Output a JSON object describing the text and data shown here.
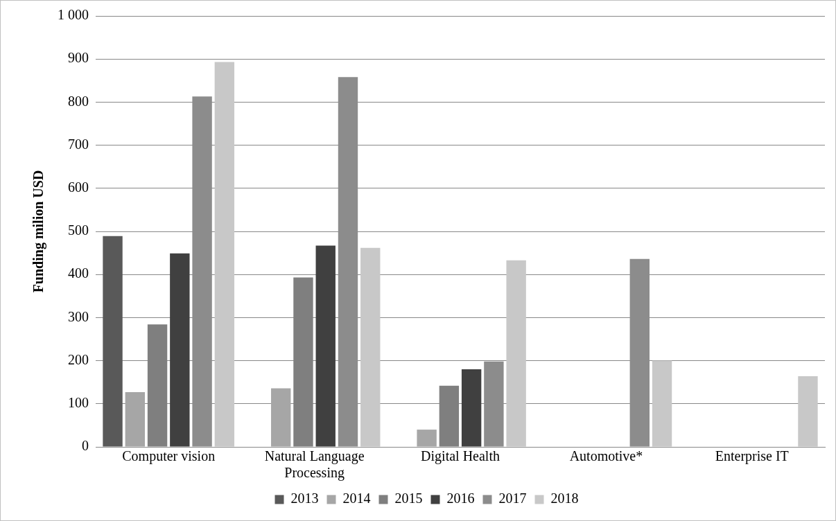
{
  "chart_data": {
    "type": "bar",
    "ylabel": "Funding milion USD",
    "categories": [
      "Computer vision",
      "Natural Language Processing",
      "Digital Health",
      "Automotive*",
      "Enterprise IT"
    ],
    "series": [
      {
        "name": "2013",
        "color": "#595959",
        "values": [
          489,
          null,
          null,
          null,
          null
        ]
      },
      {
        "name": "2014",
        "color": "#a6a6a6",
        "values": [
          127,
          136,
          40,
          null,
          null
        ]
      },
      {
        "name": "2015",
        "color": "#7f7f7f",
        "values": [
          284,
          393,
          142,
          null,
          null
        ]
      },
      {
        "name": "2016",
        "color": "#404040",
        "values": [
          449,
          467,
          180,
          null,
          null
        ]
      },
      {
        "name": "2017",
        "color": "#8c8c8c",
        "values": [
          813,
          858,
          198,
          436,
          null
        ]
      },
      {
        "name": "2018",
        "color": "#c8c8c8",
        "values": [
          893,
          462,
          433,
          200,
          164
        ]
      }
    ],
    "ylim": [
      0,
      1000
    ],
    "yticks": [
      0,
      100,
      200,
      300,
      400,
      500,
      600,
      700,
      800,
      900,
      {
        "value": 1000,
        "label": "1 000"
      }
    ],
    "grid": "y",
    "legend": "bottom"
  }
}
